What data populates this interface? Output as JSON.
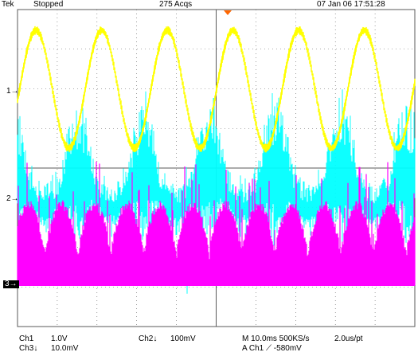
{
  "status_bar": {
    "brand": "Tek",
    "run_state": "Stopped",
    "acquisitions": "275 Acqs",
    "datetime": "07 Jan 06 17:51:28"
  },
  "channel_markers": {
    "ch1": "1→",
    "ch2": "2→",
    "ch3": "3→"
  },
  "readouts": {
    "ch1_label": "Ch1",
    "ch1_scale": "1.0V",
    "ch2_label": "Ch2↓",
    "ch2_scale": "100mV",
    "ch3_label": "Ch3↓",
    "ch3_scale": "10.0mV",
    "timebase": "M 10.0ms 500KS/s",
    "sample_interval": "2.0us/pt",
    "trigger": "A  Ch1  ⟋  -580mV"
  },
  "colors": {
    "grid": "#5a5a5a",
    "ch1": "#ffff00",
    "ch2": "#00ffff",
    "ch3": "#ff00ff",
    "trigger_marker": "#ff6600"
  }
}
